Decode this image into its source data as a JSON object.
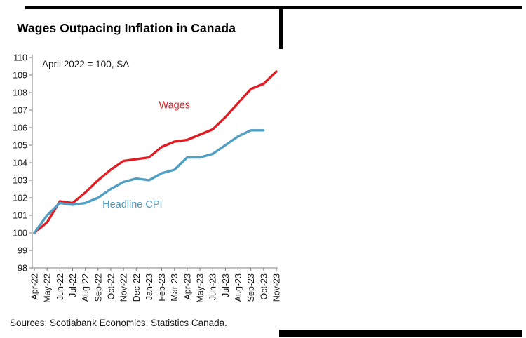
{
  "title": "Wages Outpacing Inflation in Canada",
  "subtitle": "April 2022 = 100, SA",
  "sources": "Sources: Scotiabank Economics, Statistics Canada.",
  "chart_data": {
    "type": "line",
    "title": "Wages Outpacing Inflation in Canada",
    "subtitle": "April 2022 = 100, SA",
    "categories": [
      "Apr-22",
      "May-22",
      "Jun-22",
      "Jul-22",
      "Aug-22",
      "Sep-22",
      "Oct-22",
      "Nov-22",
      "Dec-22",
      "Jan-23",
      "Feb-23",
      "Mar-23",
      "Apr-23",
      "May-23",
      "Jun-23",
      "Jul-23",
      "Aug-23",
      "Sep-23",
      "Oct-23",
      "Nov-23"
    ],
    "series": [
      {
        "name": "Wages",
        "color": "#e31c23",
        "values": [
          100.0,
          100.6,
          101.8,
          101.7,
          102.3,
          103.0,
          103.6,
          104.1,
          104.2,
          104.3,
          104.9,
          105.2,
          105.3,
          105.6,
          105.9,
          106.6,
          107.4,
          108.2,
          108.5,
          109.2
        ]
      },
      {
        "name": "Headline CPI",
        "color": "#4f9ec4",
        "values": [
          100.0,
          101.0,
          101.7,
          101.6,
          101.7,
          102.0,
          102.5,
          102.9,
          103.1,
          103.0,
          103.4,
          103.6,
          104.3,
          104.3,
          104.5,
          105.0,
          105.5,
          105.85,
          105.85
        ]
      }
    ],
    "ylim": [
      98,
      110
    ],
    "ytick_step": 1,
    "grid": false,
    "legend_position": "inline",
    "annotations": [
      {
        "text": "Wages",
        "color": "#e31c23",
        "x_index": 11,
        "y": 107.1
      },
      {
        "text": "Headline CPI",
        "color": "#4f9ec4",
        "x_index": 7.7,
        "y": 101.45
      }
    ]
  }
}
